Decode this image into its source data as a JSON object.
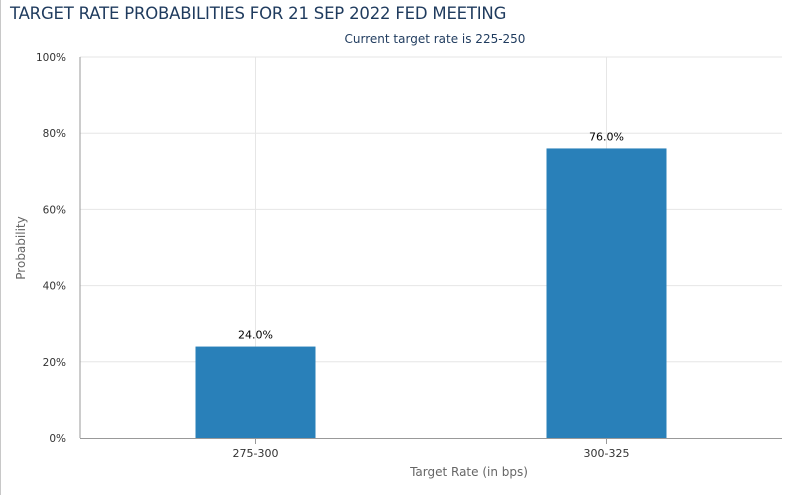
{
  "header": {
    "title": "TARGET RATE PROBABILITIES FOR 21 SEP 2022 FED MEETING",
    "subtitle": "Current target rate is 225-250"
  },
  "colors": {
    "bar": "#2980b9",
    "grid": "#e6e6e6",
    "axis": "#999999",
    "title": "#1f3b5e"
  },
  "chart_data": {
    "type": "bar",
    "title": "TARGET RATE PROBABILITIES FOR 21 SEP 2022 FED MEETING",
    "subtitle": "Current target rate is 225-250",
    "xlabel": "Target Rate (in bps)",
    "ylabel": "Probability",
    "categories": [
      "275-300",
      "300-325"
    ],
    "values": [
      24.0,
      76.0
    ],
    "data_labels": [
      "24.0%",
      "76.0%"
    ],
    "ylim": [
      0,
      100
    ],
    "yticks": [
      0,
      20,
      40,
      60,
      80,
      100
    ],
    "ytick_labels": [
      "0%",
      "20%",
      "40%",
      "60%",
      "80%",
      "100%"
    ],
    "grid": true,
    "legend": "none"
  }
}
